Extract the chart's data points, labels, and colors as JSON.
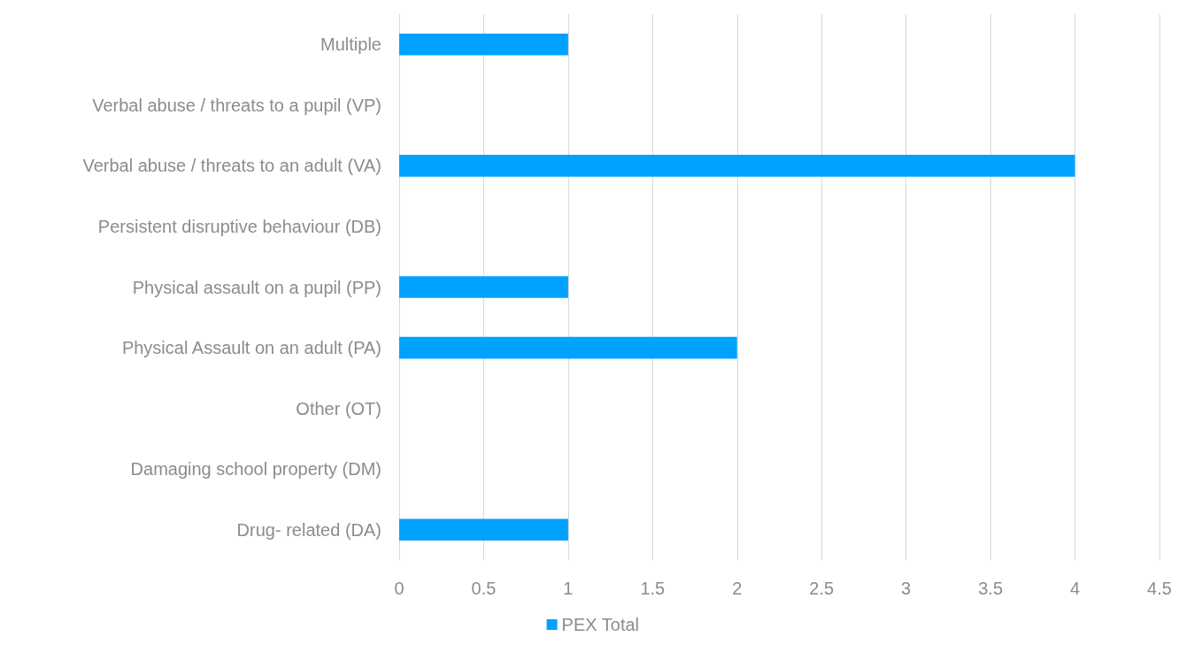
{
  "chart_data": {
    "type": "bar",
    "orientation": "horizontal",
    "categories": [
      "Multiple",
      "Verbal abuse / threats to a pupil (VP)",
      "Verbal abuse / threats to an adult (VA)",
      "Persistent disruptive behaviour (DB)",
      "Physical assault on a pupil (PP)",
      "Physical Assault on an adult (PA)",
      "Other (OT)",
      "Damaging school property (DM)",
      "Drug- related (DA)"
    ],
    "series": [
      {
        "name": "PEX Total",
        "color": "#00a2ff",
        "values": [
          1,
          0,
          4,
          0,
          1,
          2,
          0,
          0,
          1
        ]
      }
    ],
    "xlim": [
      0,
      4.5
    ],
    "xticks": [
      0,
      0.5,
      1,
      1.5,
      2,
      2.5,
      3,
      3.5,
      4,
      4.5
    ],
    "grid": "x",
    "legend": "bottom"
  }
}
